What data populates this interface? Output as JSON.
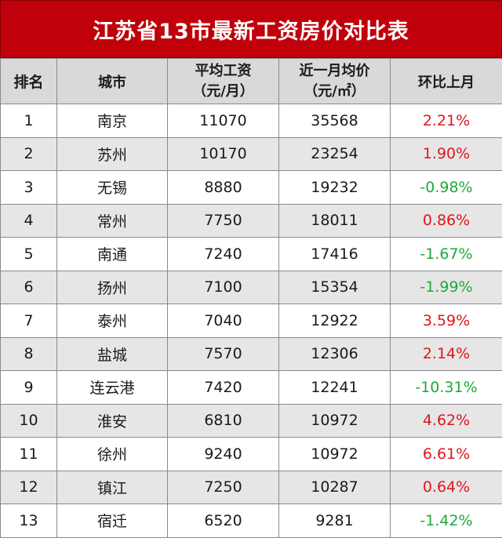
{
  "title": "江苏省13市最新工资房价对比表",
  "headers": {
    "rank": "排名",
    "city": "城市",
    "wage_main": "平均工资",
    "wage_sub": "（元/月）",
    "price_main": "近一月均价",
    "price_sub": "（元/㎡）",
    "change": "环比上月"
  },
  "colors": {
    "title_bg": "#c0000a",
    "up": "#e0161e",
    "down": "#1fa93a",
    "header_bg": "#d9d9d9",
    "stripe": "#e6e6e6"
  },
  "rows": [
    {
      "rank": "1",
      "city": "南京",
      "wage": "11070",
      "price": "35568",
      "change": "2.21%",
      "dir": "up"
    },
    {
      "rank": "2",
      "city": "苏州",
      "wage": "10170",
      "price": "23254",
      "change": "1.90%",
      "dir": "up"
    },
    {
      "rank": "3",
      "city": "无锡",
      "wage": "8880",
      "price": "19232",
      "change": "-0.98%",
      "dir": "down"
    },
    {
      "rank": "4",
      "city": "常州",
      "wage": "7750",
      "price": "18011",
      "change": "0.86%",
      "dir": "up"
    },
    {
      "rank": "5",
      "city": "南通",
      "wage": "7240",
      "price": "17416",
      "change": "-1.67%",
      "dir": "down"
    },
    {
      "rank": "6",
      "city": "扬州",
      "wage": "7100",
      "price": "15354",
      "change": "-1.99%",
      "dir": "down"
    },
    {
      "rank": "7",
      "city": "泰州",
      "wage": "7040",
      "price": "12922",
      "change": "3.59%",
      "dir": "up"
    },
    {
      "rank": "8",
      "city": "盐城",
      "wage": "7570",
      "price": "12306",
      "change": "2.14%",
      "dir": "up"
    },
    {
      "rank": "9",
      "city": "连云港",
      "wage": "7420",
      "price": "12241",
      "change": "-10.31%",
      "dir": "down"
    },
    {
      "rank": "10",
      "city": "淮安",
      "wage": "6810",
      "price": "10972",
      "change": "4.62%",
      "dir": "up"
    },
    {
      "rank": "11",
      "city": "徐州",
      "wage": "9240",
      "price": "10972",
      "change": "6.61%",
      "dir": "up"
    },
    {
      "rank": "12",
      "city": "镇江",
      "wage": "7250",
      "price": "10287",
      "change": "0.64%",
      "dir": "up"
    },
    {
      "rank": "13",
      "city": "宿迁",
      "wage": "6520",
      "price": "9281",
      "change": "-1.42%",
      "dir": "down"
    }
  ]
}
